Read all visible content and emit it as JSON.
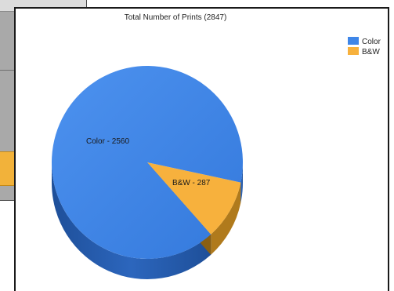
{
  "chart_data": {
    "type": "pie",
    "title": "Total Number of Prints (2847)",
    "slices": [
      {
        "name": "Color",
        "value": 2560,
        "label": "Color - 2560",
        "color": "#3f86e8",
        "side_color": "#2a62b5"
      },
      {
        "name": "B&W",
        "value": 287,
        "label": "B&W - 287",
        "color": "#f7b13d",
        "side_color": "#b07a1c"
      }
    ],
    "legend": {
      "placement": "top-right",
      "entries": [
        "Color",
        "B&W"
      ]
    },
    "style": "3d"
  }
}
